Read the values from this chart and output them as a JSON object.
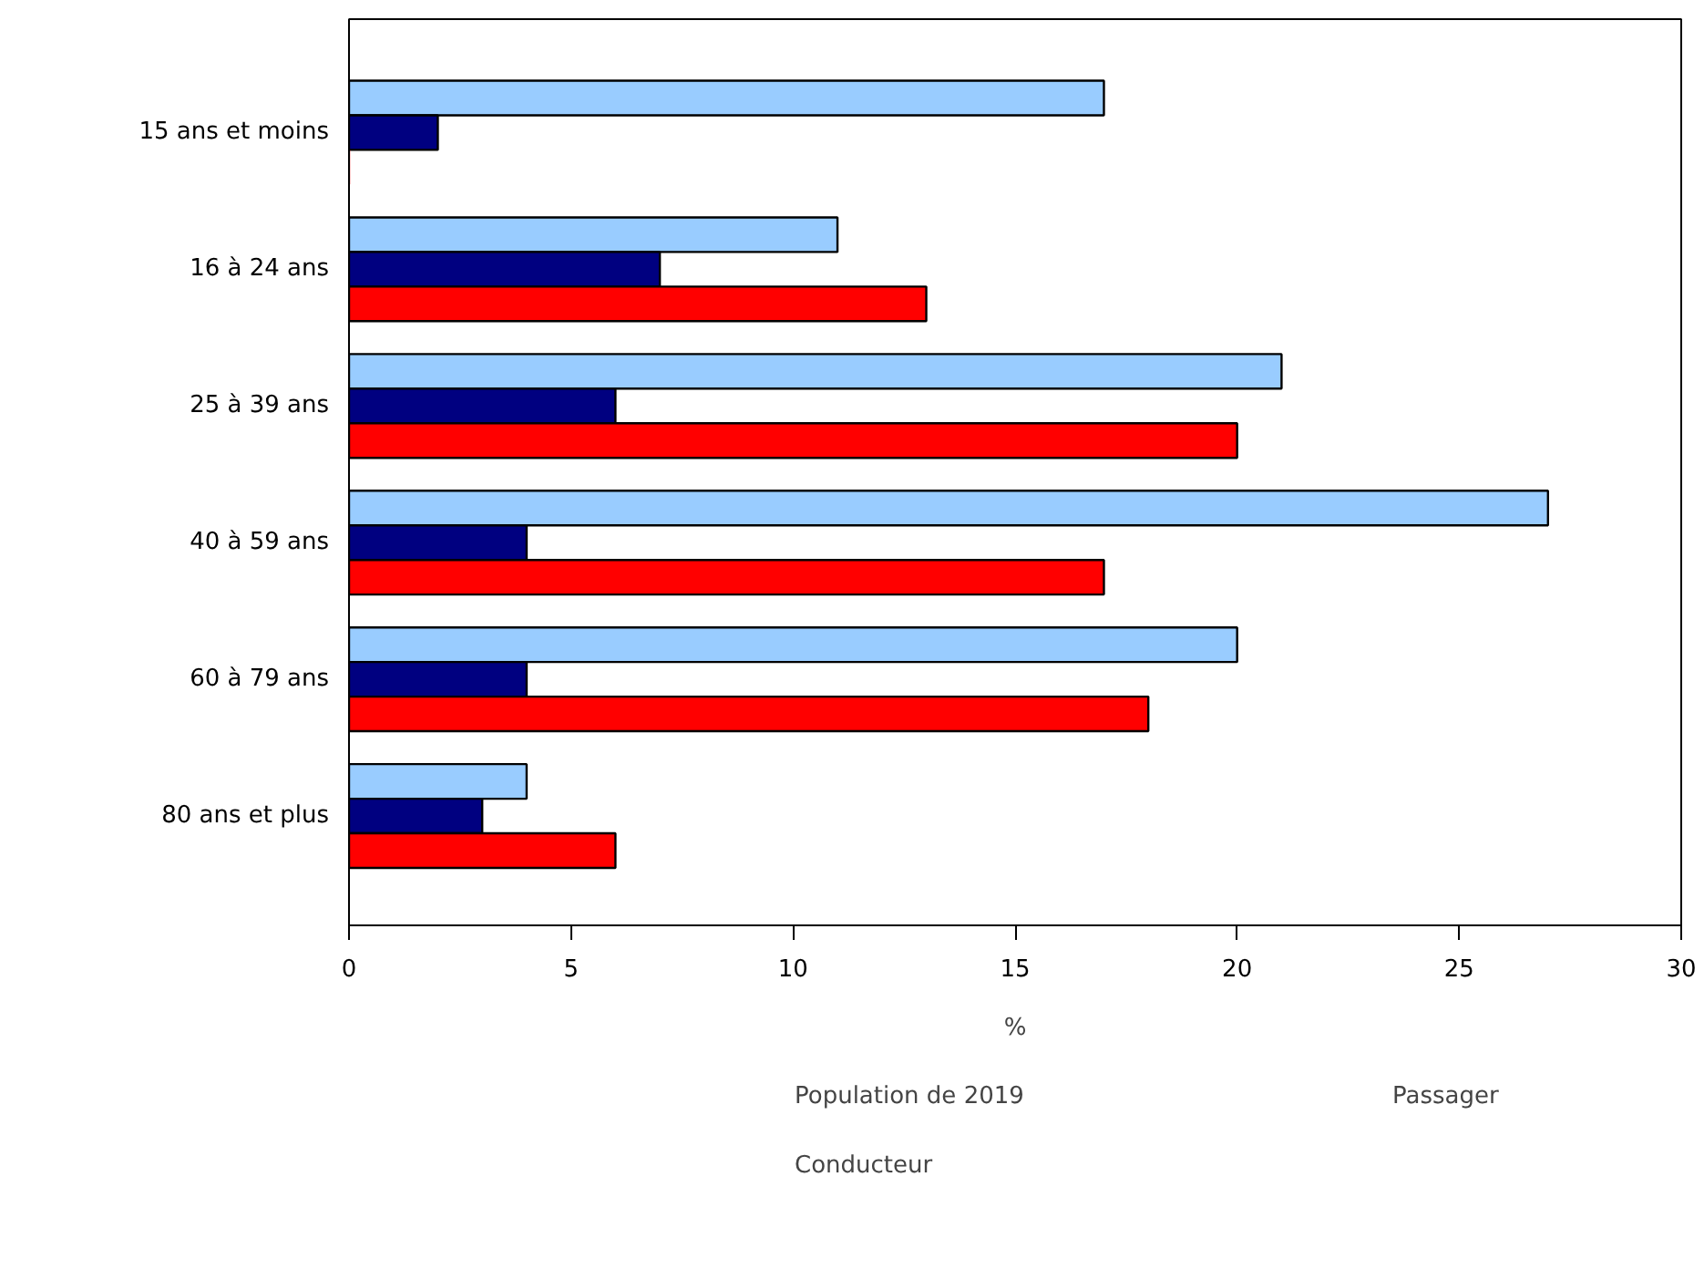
{
  "chart_data": {
    "type": "bar",
    "orientation": "horizontal",
    "xlabel": "%",
    "categories": [
      "15 ans et moins",
      "16 à 24 ans",
      "25 à 39 ans",
      "40 à 59 ans",
      "60 à 79 ans",
      "80 ans et plus"
    ],
    "series": [
      {
        "name": "Population de 2019",
        "color": "#99ccff",
        "values": [
          17,
          11,
          21,
          27,
          20,
          4
        ]
      },
      {
        "name": "Passager",
        "color": "#000080",
        "values": [
          2,
          7,
          6,
          4,
          4,
          3
        ]
      },
      {
        "name": "Conducteur",
        "color": "#ff0000",
        "values": [
          0,
          13,
          20,
          17,
          18,
          6
        ]
      }
    ],
    "xlim": [
      0,
      30
    ],
    "xticks": [
      0,
      5,
      10,
      15,
      20,
      25,
      30
    ],
    "legend": "bottom"
  }
}
